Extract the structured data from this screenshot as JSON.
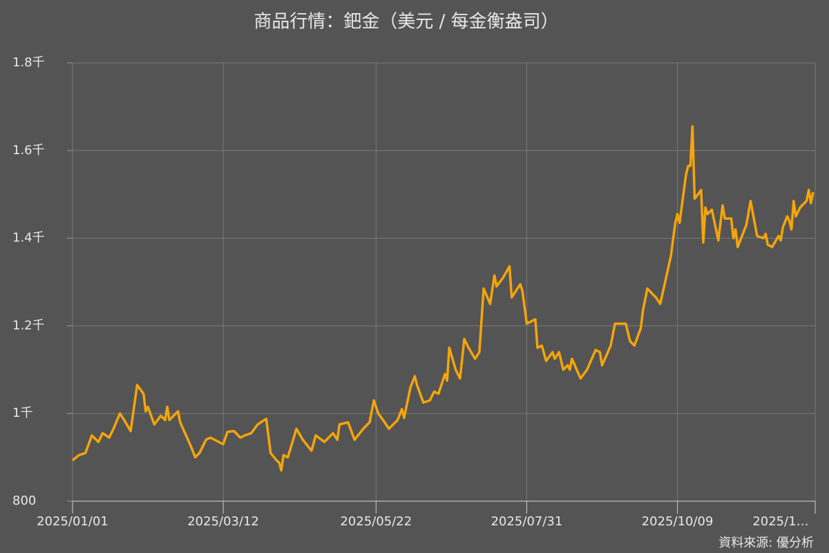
{
  "chart_data": {
    "type": "line",
    "title": "商品行情：鈀金（美元 / 每金衡盎司）",
    "source": "資料來源: 優分析",
    "x": [
      "2025/01/01",
      "2025/01/04",
      "2025/01/07",
      "2025/01/10",
      "2025/01/13",
      "2025/01/15",
      "2025/01/18",
      "2025/01/20",
      "2025/01/23",
      "2025/01/25",
      "2025/01/28",
      "2025/01/31",
      "2025/02/03",
      "2025/02/04",
      "2025/02/05",
      "2025/02/08",
      "2025/02/11",
      "2025/02/13",
      "2025/02/14",
      "2025/02/15",
      "2025/02/19",
      "2025/02/20",
      "2025/02/25",
      "2025/02/27",
      "2025/03/01",
      "2025/03/04",
      "2025/03/06",
      "2025/03/08",
      "2025/03/10",
      "2025/03/12",
      "2025/03/14",
      "2025/03/17",
      "2025/03/20",
      "2025/03/22",
      "2025/03/25",
      "2025/03/28",
      "2025/04/01",
      "2025/04/03",
      "2025/04/06",
      "2025/04/07",
      "2025/04/08",
      "2025/04/09",
      "2025/04/11",
      "2025/04/15",
      "2025/04/18",
      "2025/04/22",
      "2025/04/24",
      "2025/04/28",
      "2025/05/02",
      "2025/05/04",
      "2025/05/05",
      "2025/05/09",
      "2025/05/12",
      "2025/05/16",
      "2025/05/19",
      "2025/05/21",
      "2025/05/23",
      "2025/05/26",
      "2025/05/28",
      "2025/06/01",
      "2025/06/03",
      "2025/06/04",
      "2025/06/07",
      "2025/06/09",
      "2025/06/10",
      "2025/06/13",
      "2025/06/16",
      "2025/06/18",
      "2025/06/20",
      "2025/06/23",
      "2025/06/24",
      "2025/06/25",
      "2025/06/28",
      "2025/06/30",
      "2025/07/02",
      "2025/07/04",
      "2025/07/07",
      "2025/07/09",
      "2025/07/11",
      "2025/07/14",
      "2025/07/16",
      "2025/07/17",
      "2025/07/20",
      "2025/07/23",
      "2025/07/24",
      "2025/07/28",
      "2025/07/29",
      "2025/07/31",
      "2025/08/04",
      "2025/08/05",
      "2025/08/07",
      "2025/08/09",
      "2025/08/12",
      "2025/08/13",
      "2025/08/15",
      "2025/08/17",
      "2025/08/19",
      "2025/08/20",
      "2025/08/21",
      "2025/08/25",
      "2025/08/28",
      "2025/09/01",
      "2025/09/03",
      "2025/09/04",
      "2025/09/08",
      "2025/09/10",
      "2025/09/15",
      "2025/09/17",
      "2025/09/19",
      "2025/09/22",
      "2025/09/23",
      "2025/09/25",
      "2025/09/29",
      "2025/10/01",
      "2025/10/06",
      "2025/10/08",
      "2025/10/09",
      "2025/10/10",
      "2025/10/13",
      "2025/10/14",
      "2025/10/15",
      "2025/10/16",
      "2025/10/17",
      "2025/10/20",
      "2025/10/21",
      "2025/10/22",
      "2025/10/23",
      "2025/10/25",
      "2025/10/28",
      "2025/10/30",
      "2025/10/31",
      "2025/11/03",
      "2025/11/04",
      "2025/11/05",
      "2025/11/06",
      "2025/11/10",
      "2025/11/12",
      "2025/11/15",
      "2025/11/18",
      "2025/11/19",
      "2025/11/20",
      "2025/11/22",
      "2025/11/25",
      "2025/11/26",
      "2025/11/27",
      "2025/11/29",
      "2025/11/30",
      "2025/12/01",
      "2025/12/02",
      "2025/12/03",
      "2025/12/05",
      "2025/12/07",
      "2025/12/08",
      "2025/12/09",
      "2025/12/10",
      "2025/12/11"
    ],
    "series": [
      {
        "name": "鈀金",
        "color": "#f5a50a",
        "values": [
          893,
          905,
          910,
          950,
          935,
          955,
          945,
          965,
          1000,
          985,
          960,
          1065,
          1045,
          1005,
          1015,
          975,
          995,
          985,
          1015,
          985,
          1005,
          980,
          925,
          900,
          910,
          940,
          945,
          940,
          935,
          930,
          958,
          960,
          945,
          950,
          955,
          975,
          988,
          910,
          892,
          888,
          870,
          905,
          900,
          965,
          940,
          915,
          950,
          935,
          955,
          940,
          975,
          980,
          940,
          965,
          980,
          1030,
          1000,
          980,
          965,
          985,
          1010,
          990,
          1060,
          1085,
          1065,
          1025,
          1030,
          1050,
          1045,
          1090,
          1075,
          1150,
          1100,
          1080,
          1170,
          1150,
          1125,
          1140,
          1285,
          1250,
          1315,
          1290,
          1310,
          1336,
          1265,
          1295,
          1280,
          1205,
          1215,
          1150,
          1155,
          1120,
          1140,
          1125,
          1140,
          1100,
          1110,
          1100,
          1125,
          1080,
          1100,
          1145,
          1140,
          1110,
          1155,
          1205,
          1205,
          1165,
          1155,
          1195,
          1235,
          1285,
          1265,
          1250,
          1360,
          1435,
          1455,
          1435,
          1545,
          1565,
          1565,
          1655,
          1490,
          1510,
          1390,
          1470,
          1455,
          1465,
          1395,
          1475,
          1445,
          1445,
          1400,
          1420,
          1380,
          1430,
          1485,
          1405,
          1400,
          1410,
          1385,
          1380,
          1405,
          1395,
          1425,
          1450,
          1440,
          1420,
          1485,
          1450,
          1470,
          1480,
          1485,
          1510,
          1480,
          1505
        ]
      }
    ],
    "xlim": [
      "2025/01/01",
      "2025/12/12"
    ],
    "xticks": [
      "2025/01/01",
      "2025/03/12",
      "2025/05/22",
      "2025/07/31",
      "2025/10/09",
      {
        "value": "2025/12/12",
        "label": "2025/1…"
      }
    ],
    "ylim": [
      800,
      1800
    ],
    "yticks": [
      800,
      {
        "value": 1000,
        "label": "1千"
      },
      {
        "value": 1200,
        "label": "1.2千"
      },
      {
        "value": 1400,
        "label": "1.4千"
      },
      {
        "value": 1600,
        "label": "1.6千"
      },
      {
        "value": 1800,
        "label": "1.8千"
      }
    ],
    "grid": true
  }
}
